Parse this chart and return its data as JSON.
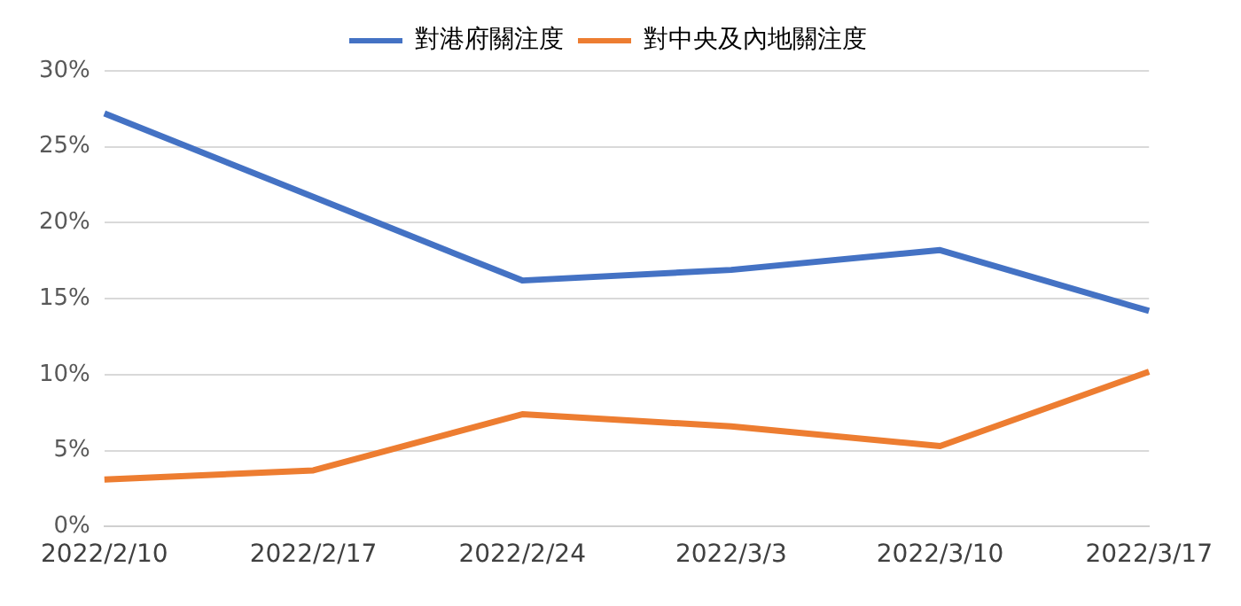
{
  "chart_data": {
    "type": "line",
    "categories": [
      "2022/2/10",
      "2022/2/17",
      "2022/2/24",
      "2022/3/3",
      "2022/3/10",
      "2022/3/17"
    ],
    "series": [
      {
        "name": "對港府關注度",
        "color": "#4472c4",
        "values": [
          27.2,
          21.7,
          16.2,
          16.9,
          18.2,
          14.2
        ]
      },
      {
        "name": "對中央及內地關注度",
        "color": "#ed7d31",
        "values": [
          3.1,
          3.7,
          7.4,
          6.6,
          5.3,
          10.2
        ]
      }
    ],
    "ylim": [
      0,
      30
    ],
    "yticks": [
      {
        "value": 0,
        "label": "0%"
      },
      {
        "value": 5,
        "label": "5%"
      },
      {
        "value": 10,
        "label": "10%"
      },
      {
        "value": 15,
        "label": "15%"
      },
      {
        "value": 20,
        "label": "20%"
      },
      {
        "value": 25,
        "label": "25%"
      },
      {
        "value": 30,
        "label": "30%"
      }
    ],
    "grid": "y",
    "legend": "top",
    "marker": "none",
    "line_style": "solid"
  }
}
